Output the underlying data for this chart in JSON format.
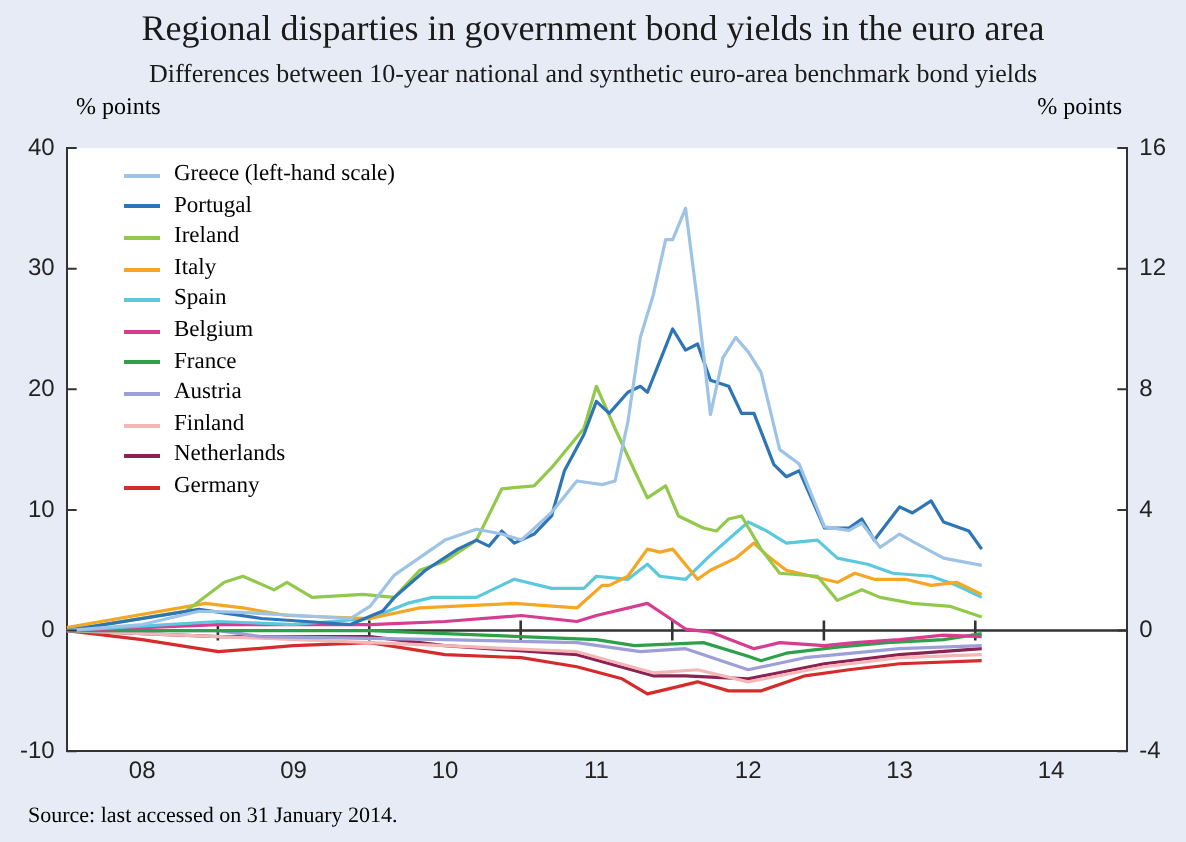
{
  "chart_data": {
    "type": "line",
    "title": "Regional disparties in government bond yields in the euro area",
    "subtitle": "Differences between 10-year national and synthetic euro-area benchmark bond yields",
    "ylabel": "% points",
    "y2label": "% points",
    "xlim": [
      "2008-01-01",
      "2015-01-01"
    ],
    "xticks": [
      {
        "value": "2008-07-01",
        "label": "08"
      },
      {
        "value": "2009-07-01",
        "label": "09"
      },
      {
        "value": "2010-07-01",
        "label": "10"
      },
      {
        "value": "2011-07-01",
        "label": "11"
      },
      {
        "value": "2012-07-01",
        "label": "12"
      },
      {
        "value": "2013-07-01",
        "label": "13"
      },
      {
        "value": "2014-07-01",
        "label": "14"
      }
    ],
    "ylim": [
      -10,
      40
    ],
    "yticks": [
      -10,
      0,
      10,
      20,
      30,
      40
    ],
    "y2lim": [
      -4,
      16
    ],
    "y2ticks": [
      -4,
      0,
      4,
      8,
      12,
      16
    ],
    "grid": false,
    "legend": "top left",
    "ref_lines": [
      {
        "axis": "y",
        "value": 0
      }
    ],
    "annotations": [
      "Source: last accessed on 31 January 2014."
    ],
    "series": [
      {
        "name": "Greece (left-hand scale)",
        "color": "#9dc3e6",
        "x": [
          "2008-01-01",
          "2008-07-01",
          "2008-11-15",
          "2009-03-01",
          "2009-11-15",
          "2010-01-01",
          "2010-03-01",
          "2010-07-01",
          "2010-09-15",
          "2010-11-15",
          "2011-01-01",
          "2011-03-15",
          "2011-05-15",
          "2011-07-15",
          "2011-08-15",
          "2011-09-15",
          "2011-10-15",
          "2011-11-15",
          "2011-12-15",
          "2012-01-01",
          "2012-02-01",
          "2012-03-01",
          "2012-04-01",
          "2012-05-01",
          "2012-06-01",
          "2012-07-01",
          "2012-08-01",
          "2012-09-15",
          "2012-11-01",
          "2013-01-01",
          "2013-03-01",
          "2013-04-01",
          "2013-05-15",
          "2013-07-01",
          "2013-08-01",
          "2013-10-15",
          "2014-01-15"
        ],
        "values": [
          0,
          0.5,
          1.6,
          1.5,
          1,
          2,
          4.6,
          7.5,
          8.4,
          8,
          7.5,
          9.8,
          12.4,
          12.1,
          12.4,
          17.3,
          24.3,
          27.8,
          32.4,
          32.4,
          35,
          27.2,
          17.9,
          22.6,
          24.3,
          23.1,
          21.4,
          15,
          13.8,
          8.6,
          8.3,
          8.9,
          6.9,
          8,
          7.4,
          6,
          5.4
        ]
      },
      {
        "name": "Portugal",
        "color": "#2e75b6",
        "axis": "y2",
        "x": [
          "2008-01-01",
          "2008-11-15",
          "2009-04-15",
          "2009-11-15",
          "2010-02-01",
          "2010-03-01",
          "2010-05-15",
          "2010-08-01",
          "2010-09-15",
          "2010-10-15",
          "2010-11-15",
          "2010-12-15",
          "2011-02-01",
          "2011-03-15",
          "2011-04-15",
          "2011-06-01",
          "2011-07-01",
          "2011-08-01",
          "2011-09-15",
          "2011-10-15",
          "2011-11-01",
          "2012-01-01",
          "2012-02-01",
          "2012-03-01",
          "2012-04-01",
          "2012-05-15",
          "2012-06-15",
          "2012-07-15",
          "2012-09-01",
          "2012-10-01",
          "2012-11-01",
          "2013-01-01",
          "2013-03-01",
          "2013-04-01",
          "2013-05-01",
          "2013-07-01",
          "2013-08-01",
          "2013-09-15",
          "2013-10-15",
          "2013-12-15",
          "2014-01-15"
        ],
        "values": [
          0,
          0.7,
          0.4,
          0.2,
          0.65,
          1.1,
          2,
          2.7,
          3,
          2.8,
          3.3,
          2.9,
          3.2,
          3.8,
          5.3,
          6.5,
          7.6,
          7.2,
          7.9,
          8.1,
          7.9,
          10,
          9.3,
          9.5,
          8.3,
          8.1,
          7.2,
          7.2,
          5.5,
          5.1,
          5.3,
          3.4,
          3.4,
          3.7,
          3,
          4.1,
          3.9,
          4.3,
          3.6,
          3.3,
          2.7
        ]
      },
      {
        "name": "Ireland",
        "color": "#92c94a",
        "axis": "y2",
        "x": [
          "2008-01-01",
          "2008-10-15",
          "2009-01-15",
          "2009-03-01",
          "2009-05-15",
          "2009-06-15",
          "2009-08-15",
          "2009-12-15",
          "2010-03-01",
          "2010-05-01",
          "2010-07-01",
          "2010-09-15",
          "2010-11-15",
          "2011-02-01",
          "2011-03-15",
          "2011-06-01",
          "2011-07-01",
          "2011-08-15",
          "2011-10-01",
          "2011-11-01",
          "2011-12-15",
          "2012-01-15",
          "2012-03-15",
          "2012-04-15",
          "2012-05-15",
          "2012-06-15",
          "2012-08-01",
          "2012-09-15",
          "2012-12-15",
          "2013-02-01",
          "2013-04-01",
          "2013-05-15",
          "2013-08-01",
          "2013-11-01",
          "2014-01-15"
        ],
        "values": [
          0,
          0.65,
          1.6,
          1.8,
          1.35,
          1.6,
          1.1,
          1.2,
          1.1,
          2,
          2.3,
          3,
          4.7,
          4.8,
          5.4,
          6.7,
          8.1,
          6.7,
          5.3,
          4.4,
          4.8,
          3.8,
          3.4,
          3.3,
          3.7,
          3.8,
          2.7,
          1.9,
          1.8,
          1,
          1.35,
          1.1,
          0.9,
          0.8,
          0.45
        ]
      },
      {
        "name": "Italy",
        "color": "#f5a623",
        "axis": "y2",
        "x": [
          "2008-01-01",
          "2008-12-01",
          "2009-03-01",
          "2009-06-15",
          "2010-01-01",
          "2010-05-01",
          "2010-12-15",
          "2011-05-15",
          "2011-07-15",
          "2011-08-01",
          "2011-09-15",
          "2011-11-01",
          "2011-12-01",
          "2012-01-01",
          "2012-03-01",
          "2012-04-01",
          "2012-06-01",
          "2012-07-15",
          "2012-08-15",
          "2012-10-01",
          "2012-12-01",
          "2013-02-01",
          "2013-03-15",
          "2013-05-01",
          "2013-07-15",
          "2013-09-15",
          "2013-11-15",
          "2014-01-15"
        ],
        "values": [
          0.1,
          0.9,
          0.75,
          0.5,
          0.4,
          0.75,
          0.9,
          0.75,
          1.5,
          1.5,
          1.8,
          2.7,
          2.6,
          2.7,
          1.7,
          2,
          2.4,
          2.9,
          2.5,
          2,
          1.8,
          1.6,
          1.9,
          1.7,
          1.7,
          1.5,
          1.6,
          1.2
        ]
      },
      {
        "name": "Spain",
        "color": "#5bc8dc",
        "axis": "y2",
        "x": [
          "2008-01-01",
          "2009-01-01",
          "2009-07-01",
          "2010-01-01",
          "2010-04-01",
          "2010-06-01",
          "2010-09-15",
          "2010-12-15",
          "2011-03-15",
          "2011-06-01",
          "2011-07-01",
          "2011-09-15",
          "2011-11-01",
          "2011-12-01",
          "2012-02-01",
          "2012-04-01",
          "2012-07-01",
          "2012-08-15",
          "2012-10-01",
          "2012-12-15",
          "2013-02-01",
          "2013-04-15",
          "2013-06-15",
          "2013-09-15",
          "2013-11-15",
          "2014-01-15"
        ],
        "values": [
          0,
          0.3,
          0.2,
          0.4,
          0.9,
          1.1,
          1.1,
          1.7,
          1.4,
          1.4,
          1.8,
          1.7,
          2.2,
          1.8,
          1.7,
          2.5,
          3.6,
          3.3,
          2.9,
          3,
          2.4,
          2.2,
          1.9,
          1.8,
          1.5,
          1.1
        ]
      },
      {
        "name": "Belgium",
        "color": "#d63c8f",
        "axis": "y2",
        "x": [
          "2008-01-01",
          "2009-01-01",
          "2010-01-01",
          "2010-07-01",
          "2011-01-01",
          "2011-05-15",
          "2011-07-01",
          "2011-11-01",
          "2011-12-15",
          "2012-02-01",
          "2012-04-01",
          "2012-07-15",
          "2012-09-15",
          "2013-01-01",
          "2013-03-15",
          "2013-07-01",
          "2013-10-15",
          "2014-01-15"
        ],
        "values": [
          0,
          0.2,
          0.2,
          0.3,
          0.5,
          0.3,
          0.5,
          0.9,
          0.5,
          0.05,
          -0.05,
          -0.6,
          -0.4,
          -0.5,
          -0.4,
          -0.3,
          -0.15,
          -0.2
        ]
      },
      {
        "name": "France",
        "color": "#2ea04a",
        "axis": "y2",
        "x": [
          "2008-01-01",
          "2009-01-01",
          "2010-01-01",
          "2010-07-01",
          "2011-01-01",
          "2011-07-01",
          "2011-10-01",
          "2012-03-15",
          "2012-07-01",
          "2012-08-01",
          "2012-10-01",
          "2013-02-01",
          "2013-06-01",
          "2013-10-15",
          "2014-01-15"
        ],
        "values": [
          0,
          0,
          0,
          -0.1,
          -0.2,
          -0.3,
          -0.5,
          -0.4,
          -0.85,
          -1,
          -0.75,
          -0.55,
          -0.4,
          -0.3,
          -0.1
        ]
      },
      {
        "name": "Austria",
        "color": "#9e9ed8",
        "axis": "y2",
        "x": [
          "2008-01-01",
          "2009-01-01",
          "2009-04-15",
          "2010-07-01",
          "2011-05-15",
          "2011-10-15",
          "2012-02-01",
          "2012-07-01",
          "2012-11-15",
          "2013-07-01",
          "2014-01-15"
        ],
        "values": [
          0,
          0,
          -0.2,
          -0.3,
          -0.4,
          -0.7,
          -0.6,
          -1.3,
          -0.9,
          -0.6,
          -0.5
        ]
      },
      {
        "name": "Finland",
        "color": "#f4b6b6",
        "axis": "y2",
        "x": [
          "2008-01-01",
          "2009-01-01",
          "2010-07-01",
          "2011-05-15",
          "2011-11-15",
          "2012-03-01",
          "2012-07-01",
          "2013-01-01",
          "2013-07-01",
          "2014-01-15"
        ],
        "values": [
          0,
          -0.2,
          -0.5,
          -0.7,
          -1.4,
          -1.3,
          -1.7,
          -1.2,
          -0.9,
          -0.8
        ]
      },
      {
        "name": "Netherlands",
        "color": "#8b2252",
        "axis": "y2",
        "x": [
          "2008-01-01",
          "2009-01-01",
          "2010-01-01",
          "2010-07-01",
          "2011-05-15",
          "2011-11-15",
          "2012-02-01",
          "2012-07-01",
          "2013-01-01",
          "2013-07-01",
          "2014-01-15"
        ],
        "values": [
          0,
          -0.2,
          -0.2,
          -0.5,
          -0.8,
          -1.5,
          -1.5,
          -1.6,
          -1.1,
          -0.8,
          -0.6
        ]
      },
      {
        "name": "Germany",
        "color": "#d62b2b",
        "axis": "y2",
        "x": [
          "2008-01-01",
          "2008-07-01",
          "2009-01-01",
          "2009-07-01",
          "2010-01-01",
          "2010-07-01",
          "2011-01-01",
          "2011-05-15",
          "2011-09-01",
          "2011-11-01",
          "2012-01-01",
          "2012-03-01",
          "2012-05-15",
          "2012-08-01",
          "2012-11-15",
          "2013-03-01",
          "2013-07-01",
          "2014-01-15"
        ],
        "values": [
          0,
          -0.3,
          -0.7,
          -0.5,
          -0.4,
          -0.8,
          -0.9,
          -1.2,
          -1.6,
          -2.1,
          -1.9,
          -1.7,
          -2,
          -2,
          -1.5,
          -1.3,
          -1.1,
          -1
        ]
      }
    ]
  }
}
